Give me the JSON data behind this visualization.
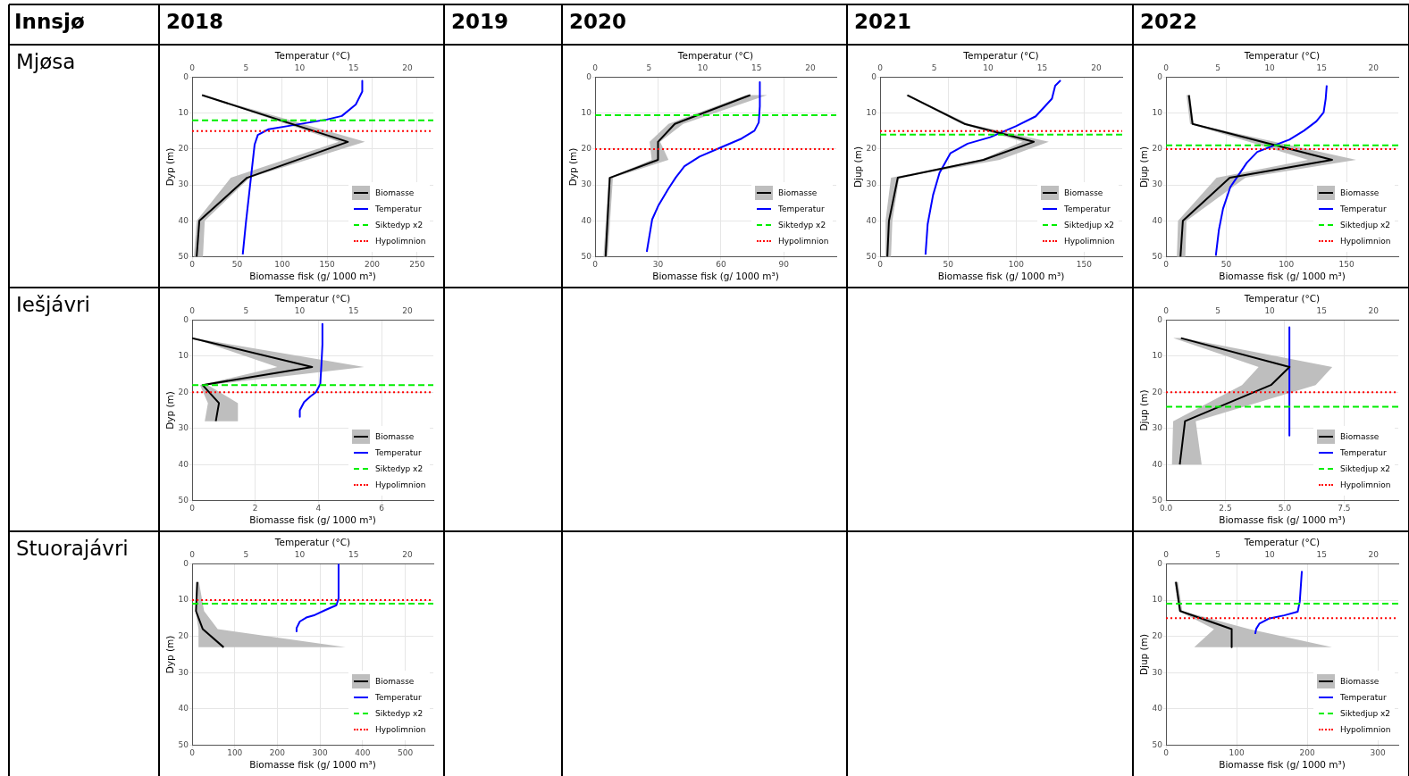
{
  "chart_data": [
    {
      "type": "other",
      "title": "Innsjø",
      "categories": [
        "2018",
        "2019",
        "2020",
        "2021",
        "2022"
      ],
      "y_categories": [
        "Mjøsa",
        "Iešjávri",
        "Stuorajávri"
      ]
    },
    {
      "type": "line",
      "orientation": "horizontal",
      "xlabel": "Biomasse fisk (g/ 1000 m³)",
      "x2label": "Temperatur (°C)",
      "ylabel": "Dyp (m)",
      "xlim": [
        0,
        268
      ],
      "xticks": [
        0,
        50,
        100,
        150,
        200,
        250
      ],
      "x2lim": [
        0,
        22.4
      ],
      "x2ticks": [
        0,
        5,
        10,
        15,
        20
      ],
      "ylim": [
        50,
        0
      ],
      "yticks": [
        0,
        10,
        20,
        30,
        40,
        50
      ],
      "grid": true,
      "legend": "bottom right",
      "series": [
        {
          "name": "Biomasse",
          "color": "#000000",
          "x": [
            5,
            18,
            28,
            40,
            50
          ],
          "values": [
            11,
            173,
            61,
            8,
            5
          ],
          "lower": [
            10,
            163,
            43,
            5,
            2
          ],
          "upper": [
            12,
            192,
            64,
            14,
            12
          ]
        },
        {
          "name": "Temperatur",
          "color": "#0000ff",
          "axis": "x2",
          "x": [
            1,
            4,
            7.6,
            10.8,
            11.8,
            13.6,
            14.5,
            16.1,
            18.8,
            26.9,
            32.3,
            40.3,
            49.3
          ],
          "values": [
            15.8,
            15.8,
            15.2,
            13.9,
            12.5,
            8.9,
            7.1,
            6.1,
            5.8,
            5.5,
            5.3,
            5,
            4.7
          ]
        }
      ],
      "ref_lines": [
        {
          "axis": "y",
          "value": 12,
          "label": "Siktedyp x2",
          "color": "#00ee00",
          "line_style": "dashed"
        },
        {
          "axis": "y",
          "value": 15,
          "label": "Hypolimnion",
          "color": "#ff0000",
          "line_style": "dotted"
        }
      ]
    },
    {
      "type": "line",
      "orientation": "horizontal",
      "xlabel": "Biomasse fisk (g/ 1000 m³)",
      "x2label": "Temperatur (°C)",
      "ylabel": "Dyp (m)",
      "xlim": [
        0,
        115
      ],
      "xticks": [
        0,
        30,
        60,
        90
      ],
      "x2lim": [
        0,
        22.4
      ],
      "x2ticks": [
        0,
        5,
        10,
        15,
        20
      ],
      "ylim": [
        50,
        0
      ],
      "yticks": [
        0,
        10,
        20,
        30,
        40,
        50
      ],
      "grid": true,
      "legend": "bottom right",
      "series": [
        {
          "name": "Biomasse",
          "color": "#000000",
          "x": [
            5,
            13,
            18,
            23,
            28,
            50
          ],
          "values": [
            74,
            38,
            30,
            30,
            7,
            5
          ],
          "lower": [
            72,
            35,
            26,
            27,
            6.5,
            4
          ],
          "upper": [
            82,
            42,
            31,
            35,
            8.5,
            6
          ]
        },
        {
          "name": "Temperatur",
          "color": "#0000ff",
          "axis": "x2",
          "x": [
            1.4,
            8.1,
            12.6,
            14.9,
            17.1,
            19.4,
            22.1,
            24.8,
            27.9,
            31.1,
            35.6,
            39.6,
            48.6
          ],
          "values": [
            15.3,
            15.3,
            15.2,
            14.8,
            13.6,
            11.8,
            9.7,
            8.3,
            7.5,
            6.8,
            5.9,
            5.3,
            4.8
          ]
        }
      ],
      "ref_lines": [
        {
          "axis": "y",
          "value": 10.6,
          "label": "Siktedyp x2",
          "color": "#00ee00",
          "line_style": "dashed"
        },
        {
          "axis": "y",
          "value": 20,
          "label": "Hypolimnion",
          "color": "#ff0000",
          "line_style": "dotted"
        }
      ]
    },
    {
      "type": "line",
      "orientation": "horizontal",
      "xlabel": "Biomasse fisk (g/ 1000 m³)",
      "x2label": "Temperatur (°C)",
      "ylabel": "Djup (m)",
      "xlim": [
        0,
        178
      ],
      "xticks": [
        0,
        50,
        100,
        150
      ],
      "x2lim": [
        0,
        22.4
      ],
      "x2ticks": [
        0,
        5,
        10,
        15,
        20
      ],
      "ylim": [
        50,
        0
      ],
      "yticks": [
        0,
        10,
        20,
        30,
        40,
        50
      ],
      "grid": true,
      "legend": "bottom right",
      "series": [
        {
          "name": "Biomasse",
          "color": "#000000",
          "x": [
            5,
            13,
            18,
            23,
            28,
            40,
            50
          ],
          "values": [
            20,
            62,
            113,
            76,
            13,
            6.5,
            5.3
          ],
          "lower": [
            19,
            60,
            105,
            74,
            8,
            4,
            4
          ],
          "upper": [
            21,
            65,
            124,
            88,
            14,
            9,
            8
          ]
        },
        {
          "name": "Temperatur",
          "color": "#0000ff",
          "axis": "x2",
          "x": [
            0.9,
            2.4,
            6,
            10.9,
            13.6,
            16.7,
            18.5,
            21.2,
            26.6,
            32.8,
            40.9,
            49.4
          ],
          "values": [
            16.7,
            16.2,
            15.9,
            14.4,
            12.6,
            10.2,
            8.1,
            6.5,
            5.5,
            4.9,
            4.4,
            4.2
          ]
        }
      ],
      "ref_lines": [
        {
          "axis": "y",
          "value": 16,
          "label": "Siktedjup x2",
          "color": "#00ee00",
          "line_style": "dashed"
        },
        {
          "axis": "y",
          "value": 15,
          "label": "Hypolimnion",
          "color": "#ff0000",
          "line_style": "dotted"
        }
      ]
    },
    {
      "type": "line",
      "orientation": "horizontal",
      "xlabel": "Biomasse fisk (g/ 1000 m³)",
      "x2label": "Temperatur (°C)",
      "ylabel": "Djup (m)",
      "xlim": [
        0,
        193
      ],
      "xticks": [
        0,
        50,
        100,
        150
      ],
      "x2lim": [
        0,
        22.4
      ],
      "x2ticks": [
        0,
        5,
        10,
        15,
        20
      ],
      "ylim": [
        50,
        0
      ],
      "yticks": [
        0,
        10,
        20,
        30,
        40,
        50
      ],
      "grid": true,
      "legend": "bottom right",
      "series": [
        {
          "name": "Biomasse",
          "color": "#000000",
          "x": [
            5,
            13,
            23,
            28,
            40,
            50
          ],
          "values": [
            19,
            22,
            138,
            53,
            14,
            12
          ],
          "lower": [
            17,
            20,
            118,
            42,
            10,
            9
          ],
          "upper": [
            20,
            23,
            158,
            66,
            17,
            16
          ]
        },
        {
          "name": "Temperatur",
          "color": "#0000ff",
          "axis": "x2",
          "x": [
            2.3,
            6,
            9.8,
            12.3,
            14.9,
            17.4,
            18.7,
            20.8,
            23.8,
            27.2,
            30.6,
            36.6,
            42.5,
            49.7
          ],
          "values": [
            15.5,
            15.4,
            15.2,
            14.5,
            13.3,
            11.9,
            10.7,
            8.8,
            7.8,
            7,
            6.2,
            5.5,
            5.1,
            4.8
          ]
        }
      ],
      "ref_lines": [
        {
          "axis": "y",
          "value": 19,
          "label": "Siktedjup x2",
          "color": "#00ee00",
          "line_style": "dashed"
        },
        {
          "axis": "y",
          "value": 20,
          "label": "Hypolimnion",
          "color": "#ff0000",
          "line_style": "dotted"
        }
      ]
    },
    {
      "type": "line",
      "orientation": "horizontal",
      "xlabel": "Biomasse fisk (g/ 1000 m³)",
      "x2label": "Temperatur (°C)",
      "ylabel": "Dyp (m)",
      "xlim": [
        0,
        7.64
      ],
      "xticks": [
        0,
        2,
        4,
        6
      ],
      "x2lim": [
        0,
        22.4
      ],
      "x2ticks": [
        0,
        5,
        10,
        15,
        20
      ],
      "ylim": [
        50,
        0
      ],
      "yticks": [
        0,
        10,
        20,
        30,
        40,
        50
      ],
      "grid": true,
      "legend": "bottom right",
      "series": [
        {
          "name": "Biomasse",
          "color": "#000000",
          "x": [
            5,
            13,
            18,
            23,
            28
          ],
          "values": [
            0,
            3.8,
            0.33,
            0.85,
            0.75
          ],
          "lower": [
            0,
            2.7,
            0.25,
            0.5,
            0.4
          ],
          "upper": [
            0.05,
            5.45,
            0.5,
            1.45,
            1.45
          ]
        },
        {
          "name": "Temperatur",
          "color": "#0000ff",
          "axis": "x2",
          "x": [
            1.1,
            6.8,
            12.7,
            17.7,
            20,
            21.1,
            22.7,
            25,
            26.8
          ],
          "values": [
            12.1,
            12.1,
            12,
            11.9,
            11.5,
            11,
            10.4,
            10,
            10
          ]
        }
      ],
      "ref_lines": [
        {
          "axis": "y",
          "value": 18,
          "label": "Siktedyp x2",
          "color": "#00ee00",
          "line_style": "dashed"
        },
        {
          "axis": "y",
          "value": 20,
          "label": "Hypolimnion",
          "color": "#ff0000",
          "line_style": "dotted"
        }
      ]
    },
    {
      "type": "line",
      "orientation": "horizontal",
      "xlabel": "Biomasse fisk (g/ 1000 m³)",
      "x2label": "Temperatur (°C)",
      "ylabel": "Djup (m)",
      "xlim": [
        0,
        9.78
      ],
      "xticks": [
        {
          "value": 0,
          "label": "0.0"
        },
        {
          "value": 2.5,
          "label": "2.5"
        },
        {
          "value": 5,
          "label": "5.0"
        },
        {
          "value": 7.5,
          "label": "7.5"
        }
      ],
      "x2lim": [
        0,
        22.4
      ],
      "x2ticks": [
        0,
        5,
        10,
        15,
        20
      ],
      "ylim": [
        50,
        0
      ],
      "yticks": [
        0,
        10,
        20,
        30,
        40,
        50
      ],
      "grid": true,
      "legend": "bottom right",
      "series": [
        {
          "name": "Biomasse",
          "color": "#000000",
          "x": [
            5,
            13,
            18,
            28,
            40
          ],
          "values": [
            0.63,
            5.2,
            4.42,
            0.8,
            0.58
          ],
          "lower": [
            0.3,
            3.9,
            3.2,
            0.3,
            0.25
          ],
          "upper": [
            0.7,
            7,
            6.3,
            1.25,
            1.5
          ]
        },
        {
          "name": "Temperatur",
          "color": "#0000ff",
          "axis": "x2",
          "x": [
            2,
            32
          ],
          "values": [
            11.9,
            11.9
          ]
        }
      ],
      "ref_lines": [
        {
          "axis": "y",
          "value": 24,
          "label": "Siktedjup x2",
          "color": "#00ee00",
          "line_style": "dashed"
        },
        {
          "axis": "y",
          "value": 20,
          "label": "Hypolimnion",
          "color": "#ff0000",
          "line_style": "dotted"
        }
      ]
    },
    {
      "type": "line",
      "orientation": "horizontal",
      "xlabel": "Biomasse fisk (g/ 1000 m³)",
      "x2label": "Temperatur (°C)",
      "ylabel": "Dyp (m)",
      "xlim": [
        0,
        566
      ],
      "xticks": [
        0,
        100,
        200,
        300,
        400,
        500
      ],
      "x2lim": [
        0,
        22.4
      ],
      "x2ticks": [
        0,
        5,
        10,
        15,
        20
      ],
      "ylim": [
        50,
        0
      ],
      "yticks": [
        0,
        10,
        20,
        30,
        40,
        50
      ],
      "grid": true,
      "legend": "bottom right",
      "series": [
        {
          "name": "Biomasse",
          "color": "#000000",
          "x": [
            5,
            13,
            18,
            23
          ],
          "values": [
            12,
            9,
            25,
            74
          ],
          "lower": [
            10,
            8,
            15,
            15
          ],
          "upper": [
            16,
            28,
            60,
            360
          ]
        },
        {
          "name": "Temperatur",
          "color": "#0000ff",
          "axis": "x2",
          "x": [
            0,
            9.5,
            11.4,
            12.7,
            14.1,
            14.8,
            15.9,
            17.7,
            18.6
          ],
          "values": [
            13.6,
            13.6,
            13.4,
            12.4,
            11.4,
            10.6,
            10,
            9.7,
            9.7
          ]
        }
      ],
      "ref_lines": [
        {
          "axis": "y",
          "value": 11,
          "label": "Siktedyp x2",
          "color": "#00ee00",
          "line_style": "dashed"
        },
        {
          "axis": "y",
          "value": 10,
          "label": "Hypolimnion",
          "color": "#ff0000",
          "line_style": "dotted"
        }
      ]
    },
    {
      "type": "line",
      "orientation": "horizontal",
      "xlabel": "Biomasse fisk (g/ 1000 m³)",
      "x2label": "Temperatur (°C)",
      "ylabel": "Djup (m)",
      "xlim": [
        0,
        329
      ],
      "xticks": [
        0,
        100,
        200,
        300
      ],
      "x2lim": [
        0,
        22.4
      ],
      "x2ticks": [
        0,
        5,
        10,
        15,
        20
      ],
      "ylim": [
        50,
        0
      ],
      "yticks": [
        0,
        10,
        20,
        30,
        40,
        50
      ],
      "grid": true,
      "legend": "bottom right",
      "series": [
        {
          "name": "Biomasse",
          "color": "#000000",
          "x": [
            5,
            13,
            18,
            23
          ],
          "values": [
            14,
            20,
            93,
            93
          ],
          "lower": [
            12,
            18,
            68,
            40
          ],
          "upper": [
            17,
            23,
            118,
            235
          ]
        },
        {
          "name": "Temperatur",
          "color": "#0000ff",
          "axis": "x2",
          "x": [
            2,
            10.4,
            13.2,
            14.2,
            15.1,
            16.5,
            17.9,
            19.3
          ],
          "values": [
            13.1,
            12.9,
            12.7,
            11.4,
            9.9,
            9,
            8.7,
            8.6
          ]
        }
      ],
      "ref_lines": [
        {
          "axis": "y",
          "value": 11,
          "label": "Siktedjup x2",
          "color": "#00ee00",
          "line_style": "dashed"
        },
        {
          "axis": "y",
          "value": 15,
          "label": "Hypolimnion",
          "color": "#ff0000",
          "line_style": "dotted"
        }
      ]
    }
  ]
}
